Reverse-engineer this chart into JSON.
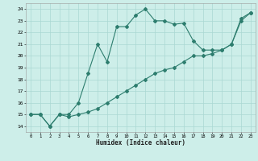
{
  "xlabel": "Humidex (Indice chaleur)",
  "bg_color": "#cdeee9",
  "grid_color": "#aad8d3",
  "line_color": "#2d7d6e",
  "xlim": [
    -0.5,
    23.5
  ],
  "ylim": [
    13.5,
    24.5
  ],
  "xticks": [
    0,
    1,
    2,
    3,
    4,
    5,
    6,
    7,
    8,
    9,
    10,
    11,
    12,
    13,
    14,
    15,
    16,
    17,
    18,
    19,
    20,
    21,
    22,
    23
  ],
  "yticks": [
    14,
    15,
    16,
    17,
    18,
    19,
    20,
    21,
    22,
    23,
    24
  ],
  "series1_x": [
    0,
    1,
    2,
    3,
    4,
    5,
    6,
    7,
    8,
    9,
    10,
    11,
    12,
    13,
    14,
    15,
    16,
    17,
    18,
    19,
    20,
    21,
    22,
    23
  ],
  "series1_y": [
    15,
    15,
    14,
    15,
    15,
    16,
    18.5,
    21,
    19.5,
    22.5,
    22.5,
    23.5,
    24,
    23,
    23,
    22.7,
    22.8,
    21.3,
    20.5,
    20.5,
    20.5,
    21,
    23.0,
    23.7
  ],
  "series2_x": [
    0,
    1,
    2,
    3,
    4,
    5,
    6,
    7,
    8,
    9,
    10,
    11,
    12,
    13,
    14,
    15,
    16,
    17,
    18,
    19,
    20,
    21,
    22,
    23
  ],
  "series2_y": [
    15,
    15,
    14,
    15,
    14.8,
    15.0,
    15.2,
    15.5,
    16.0,
    16.5,
    17.0,
    17.5,
    18.0,
    18.5,
    18.8,
    19.0,
    19.5,
    20.0,
    20.0,
    20.2,
    20.5,
    21.0,
    23.2,
    23.7
  ]
}
